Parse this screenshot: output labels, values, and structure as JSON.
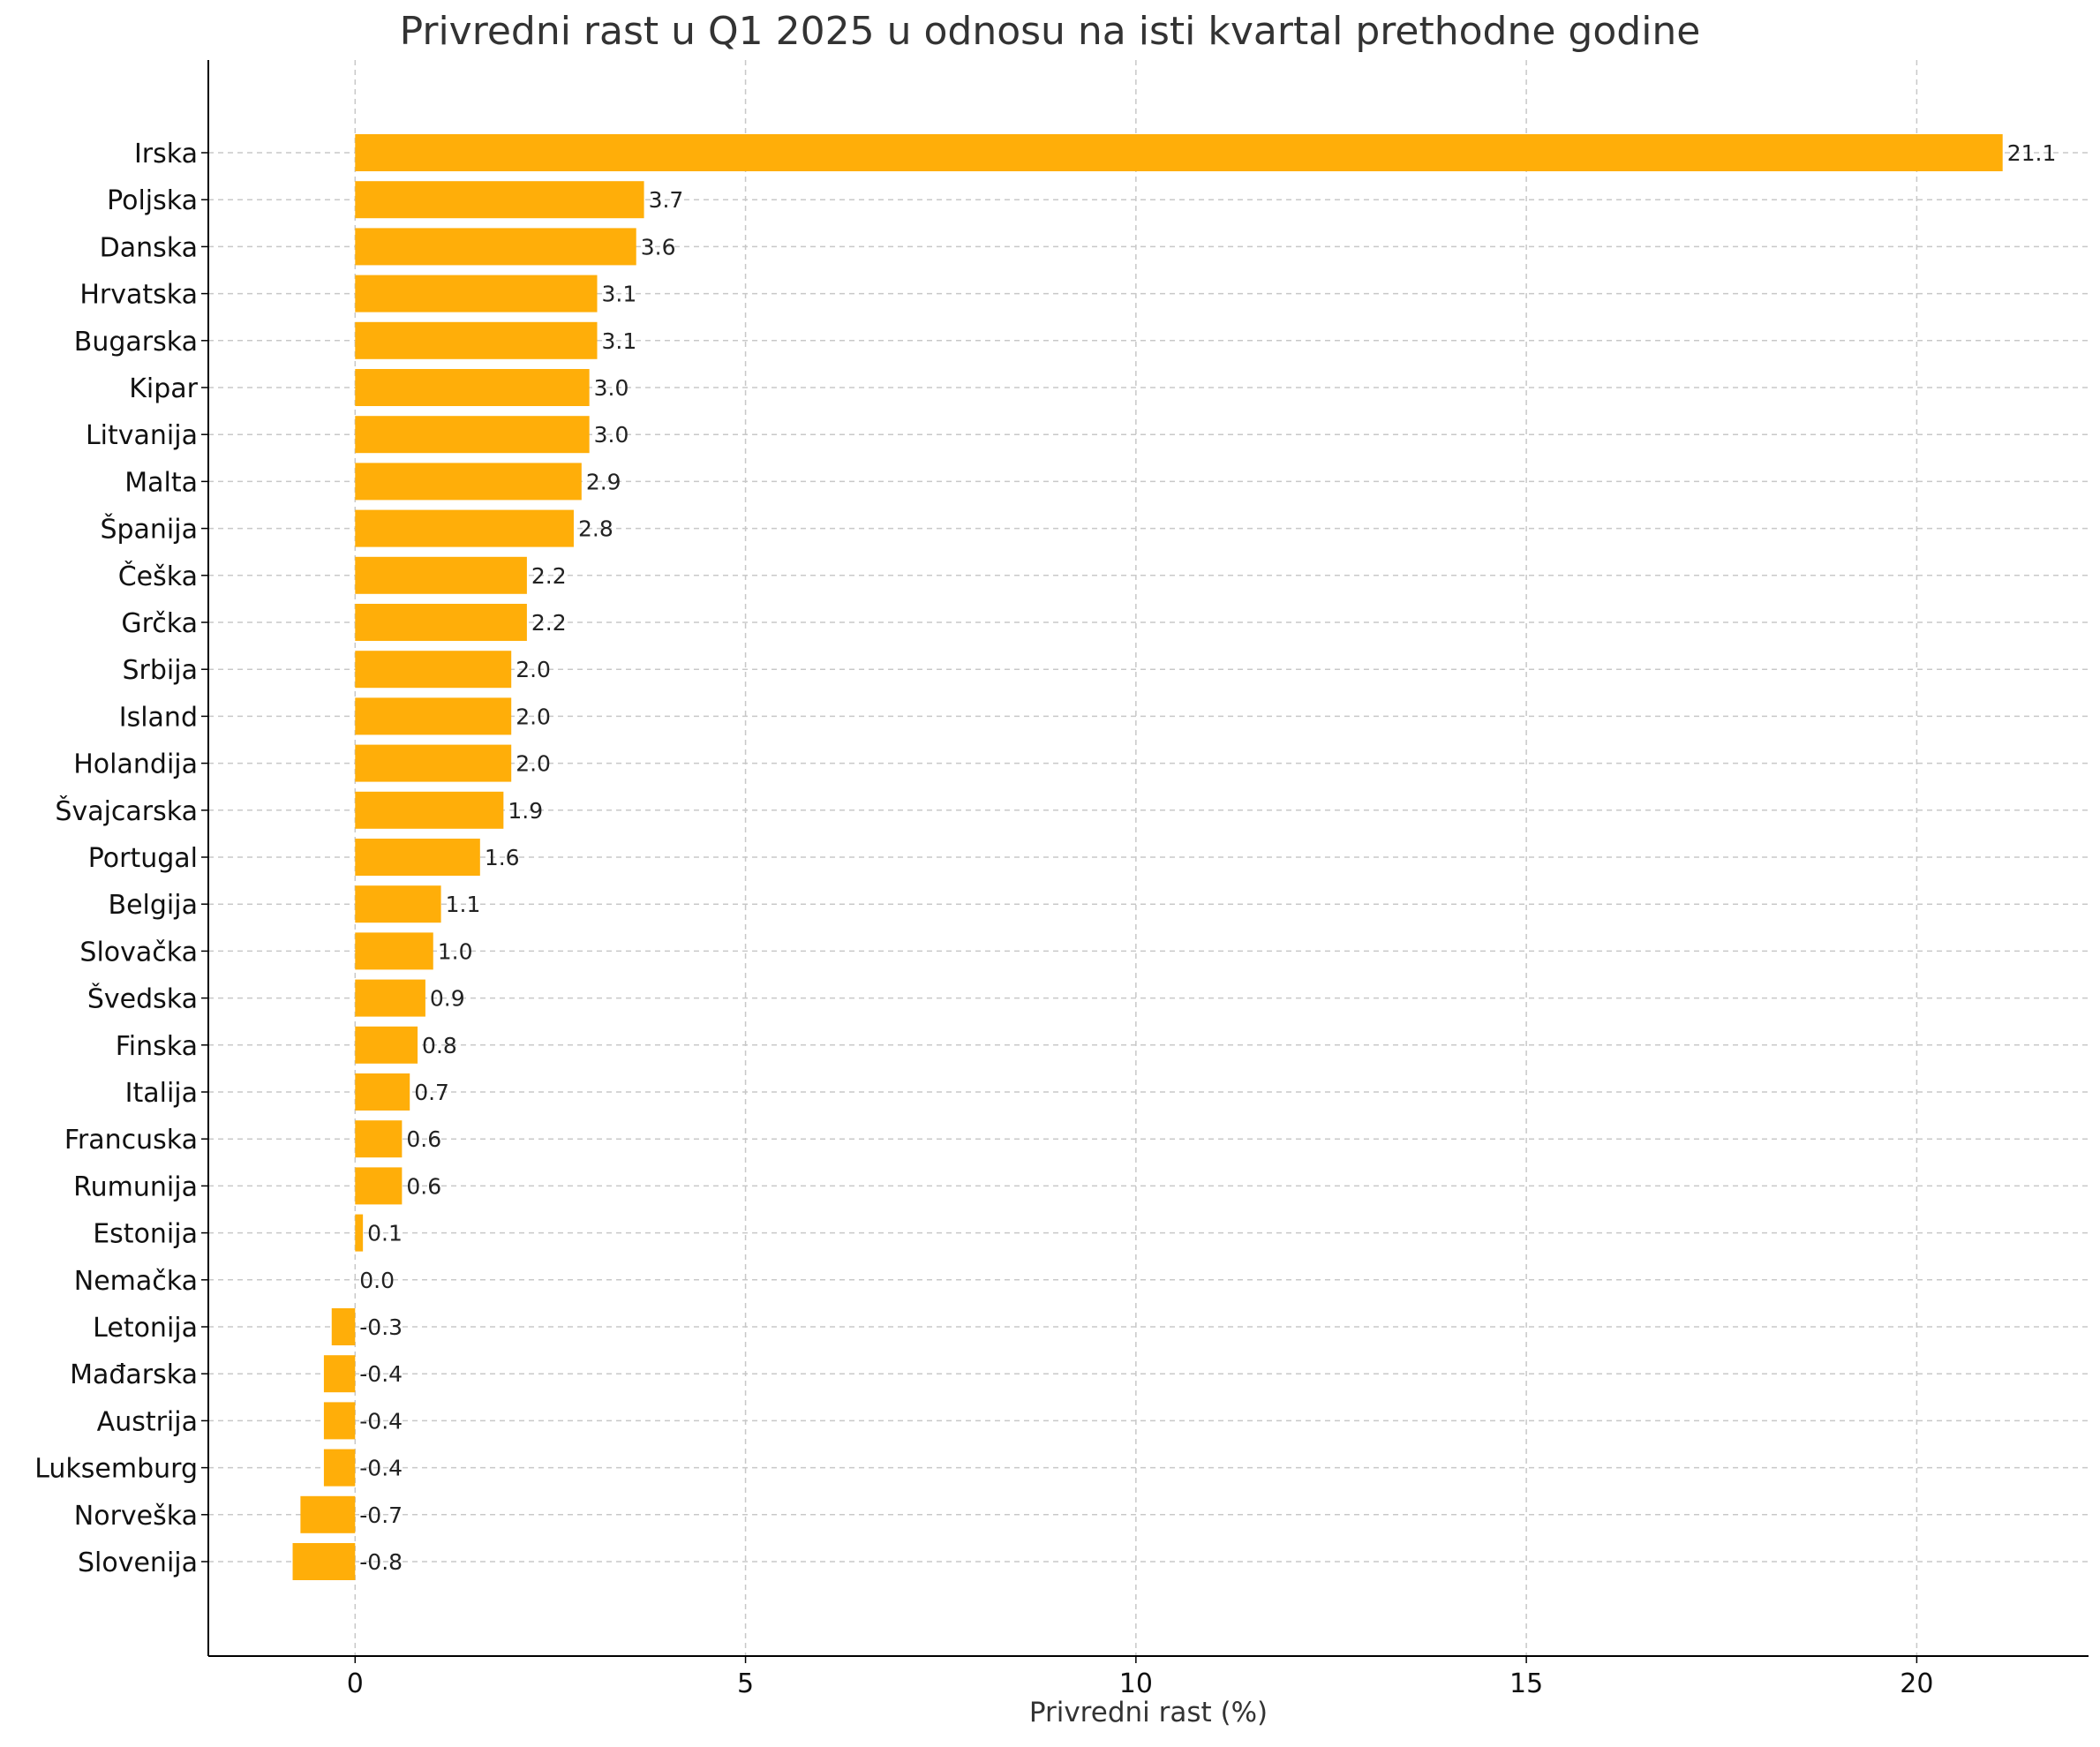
{
  "chart_data": {
    "type": "bar",
    "orientation": "horizontal",
    "title": "Privredni rast u Q1 2025 u odnosu na isti kvartal prethodne godine",
    "xlabel": "Privredni rast (%)",
    "ylabel": "",
    "xlim": [
      -1.88,
      22.2
    ],
    "xticks": [
      0,
      5,
      10,
      15,
      20
    ],
    "grid": true,
    "bar_color": "#FFAE09",
    "categories": [
      "Irska",
      "Poljska",
      "Danska",
      "Hrvatska",
      "Bugarska",
      "Kipar",
      "Litvanija",
      "Malta",
      "Španija",
      "Češka",
      "Grčka",
      "Srbija",
      "Island",
      "Holandija",
      "Švajcarska",
      "Portugal",
      "Belgija",
      "Slovačka",
      "Švedska",
      "Finska",
      "Italija",
      "Francuska",
      "Rumunija",
      "Estonija",
      "Nemačka",
      "Letonija",
      "Mađarska",
      "Austrija",
      "Luksemburg",
      "Norveška",
      "Slovenija"
    ],
    "values": [
      21.1,
      3.7,
      3.6,
      3.1,
      3.1,
      3.0,
      3.0,
      2.9,
      2.8,
      2.2,
      2.2,
      2.0,
      2.0,
      2.0,
      1.9,
      1.6,
      1.1,
      1.0,
      0.9,
      0.8,
      0.7,
      0.6,
      0.6,
      0.1,
      0.0,
      -0.3,
      -0.4,
      -0.4,
      -0.4,
      -0.7,
      -0.8
    ]
  }
}
